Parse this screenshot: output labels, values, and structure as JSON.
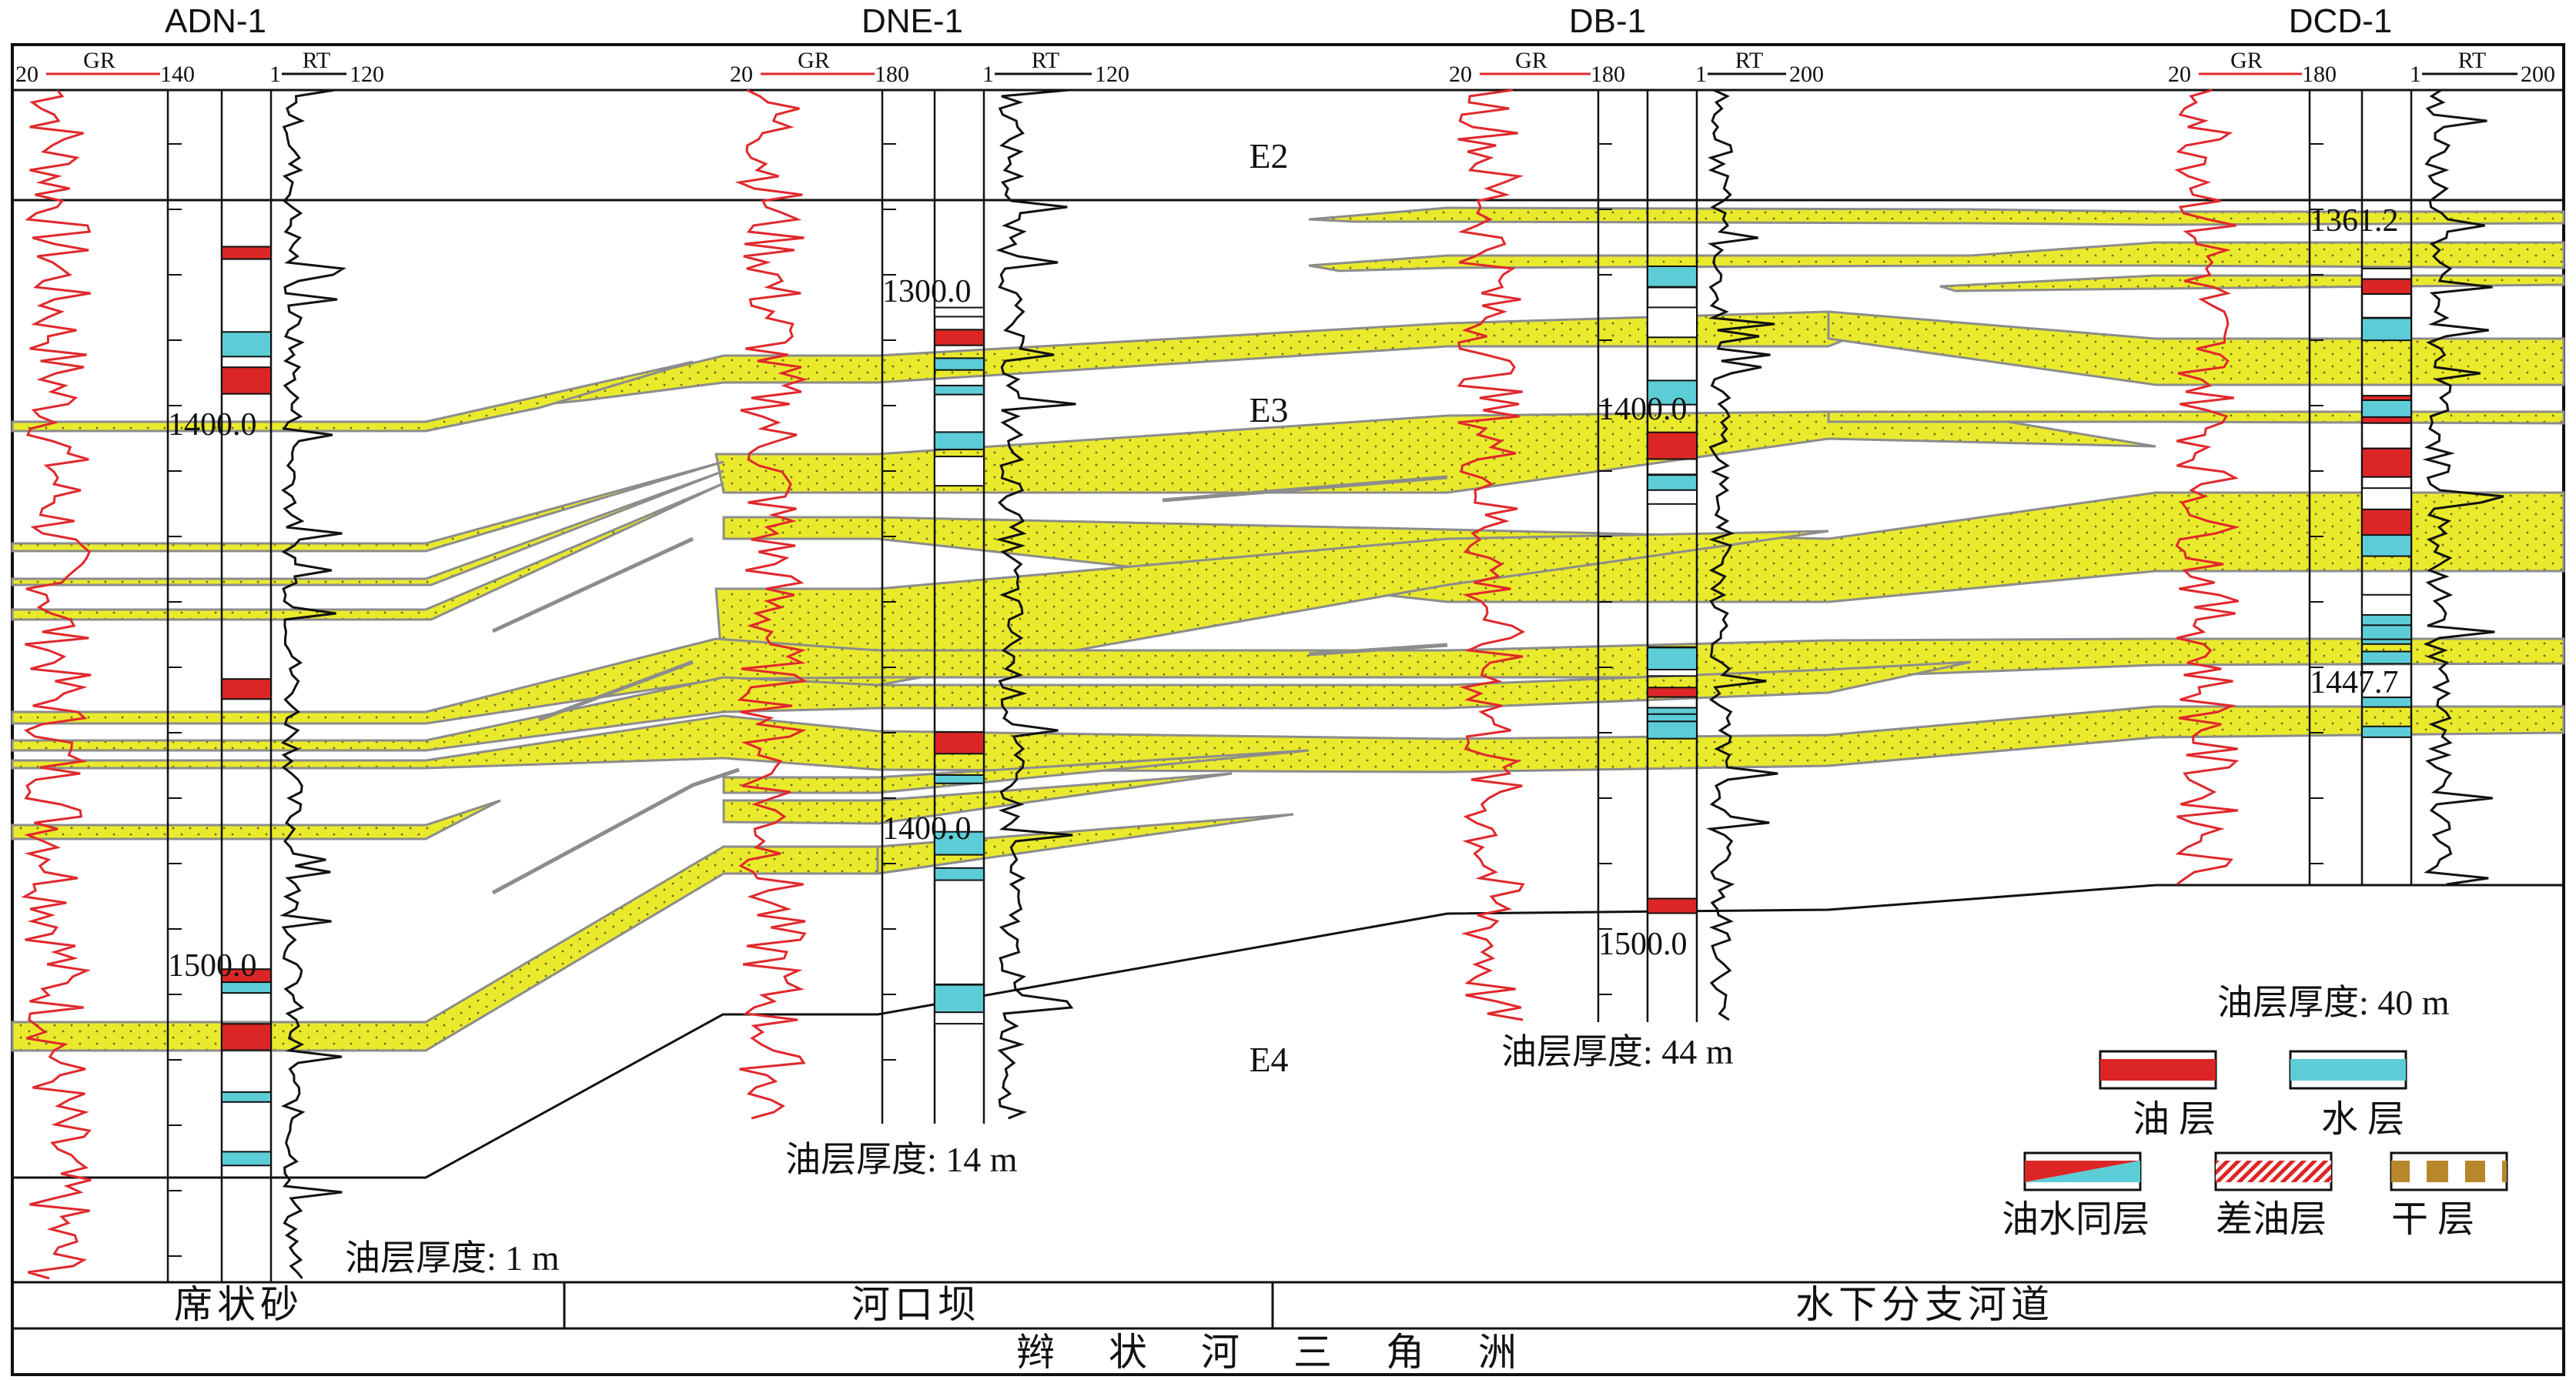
{
  "wells": [
    {
      "name": "ADN-1",
      "gr_scale": {
        "min": "20",
        "label": "GR",
        "max": "140"
      },
      "rt_scale": {
        "min": "1",
        "label": "RT",
        "max": "120"
      },
      "depth_labels": [
        "1400.0",
        "1500.0"
      ],
      "oil_thickness": "油层厚度: 1 m"
    },
    {
      "name": "DNE-1",
      "gr_scale": {
        "min": "20",
        "label": "GR",
        "max": "180"
      },
      "rt_scale": {
        "min": "1",
        "label": "RT",
        "max": "120"
      },
      "depth_labels": [
        "1300.0",
        "1400.0"
      ],
      "oil_thickness": "油层厚度: 14 m"
    },
    {
      "name": "DB-1",
      "gr_scale": {
        "min": "20",
        "label": "GR",
        "max": "180"
      },
      "rt_scale": {
        "min": "1",
        "label": "RT",
        "max": "200"
      },
      "depth_labels": [
        "1400.0",
        "1500.0"
      ],
      "oil_thickness": "油层厚度: 44 m"
    },
    {
      "name": "DCD-1",
      "gr_scale": {
        "min": "20",
        "label": "GR",
        "max": "180"
      },
      "rt_scale": {
        "min": "1",
        "label": "RT",
        "max": "200"
      },
      "depth_labels": [
        "1361.2",
        "1447.7"
      ],
      "oil_thickness": "油层厚度: 40 m"
    }
  ],
  "units": [
    "E2",
    "E3",
    "E4"
  ],
  "legend": [
    {
      "label": "油 层",
      "type": "oil"
    },
    {
      "label": "水 层",
      "type": "water"
    },
    {
      "label": "油水同层",
      "type": "oil-water"
    },
    {
      "label": "差油层",
      "type": "poor-oil"
    },
    {
      "label": "干 层",
      "type": "dry"
    }
  ],
  "facies_row": [
    "席状砂",
    "河口坝",
    "水下分支河道"
  ],
  "facies_bottom": "辫状河三角洲",
  "colors": {
    "sand": "#eaea2c",
    "sand_edge": "#8c8c8c",
    "gr_curve": "#e0282c",
    "rt_curve": "#111111",
    "oil": "#dc2626",
    "water": "#5ccdd6",
    "dry": "#b8862b"
  }
}
